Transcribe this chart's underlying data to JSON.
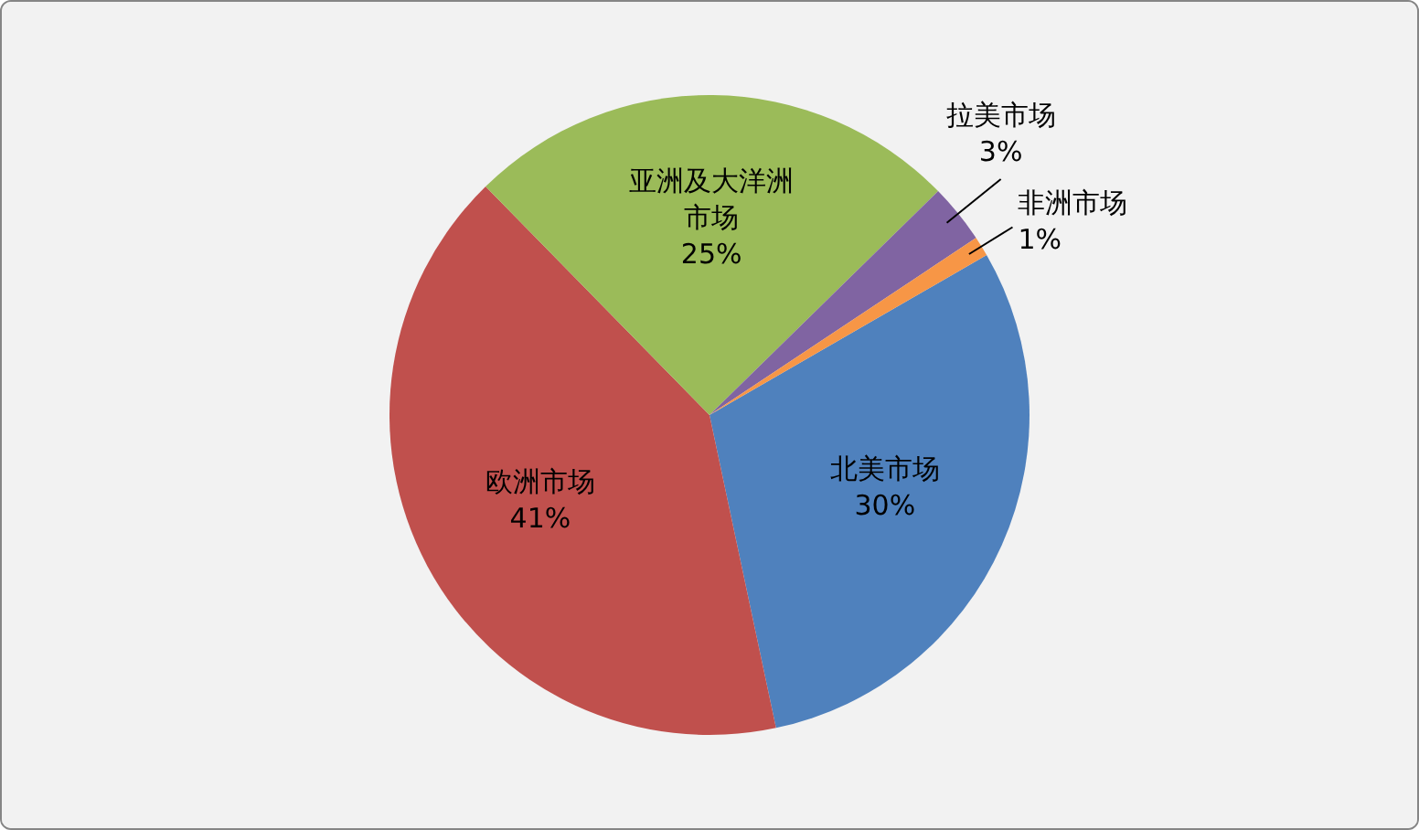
{
  "chart_data": {
    "type": "pie",
    "categories": [
      "北美市场",
      "欧洲市场",
      "亚洲及大洋洲市场",
      "拉美市场",
      "非洲市场"
    ],
    "values": [
      30,
      41,
      25,
      3,
      1
    ],
    "value_labels": [
      "30%",
      "41%",
      "25%",
      "3%",
      "1%"
    ],
    "colors": [
      "#4f81bd",
      "#c0504d",
      "#9bbb59",
      "#8064a2",
      "#f79646"
    ]
  }
}
